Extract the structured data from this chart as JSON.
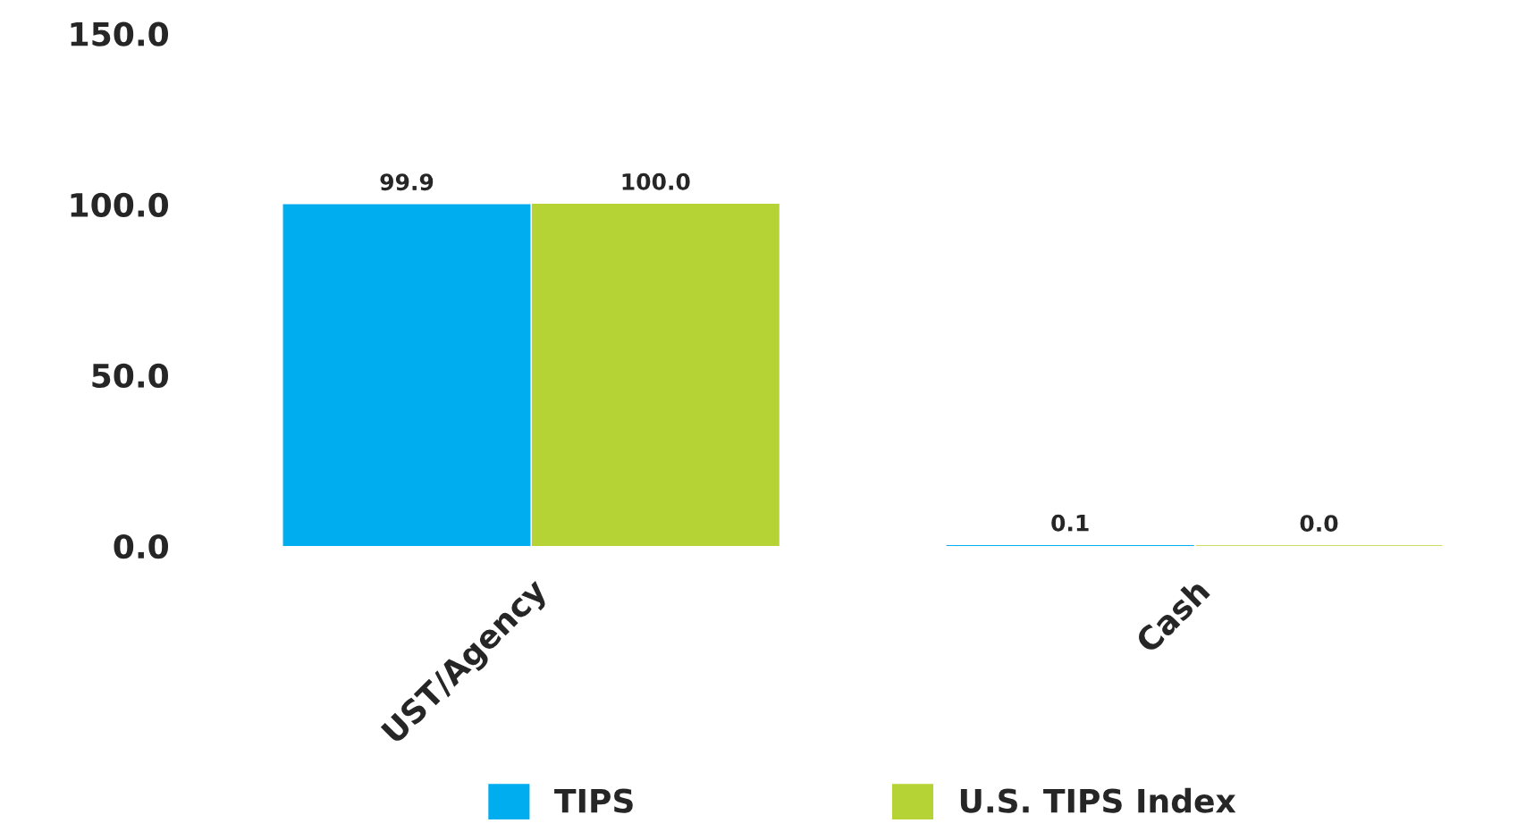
{
  "chart_data": {
    "type": "bar",
    "categories": [
      "UST/Agency",
      "Cash"
    ],
    "series": [
      {
        "name": "TIPS",
        "color": "#00aeef",
        "values": [
          99.9,
          0.1
        ],
        "value_labels": [
          "99.9",
          "0.1"
        ]
      },
      {
        "name": "U.S. TIPS Index",
        "color": "#b5d334",
        "values": [
          100.0,
          0.0
        ],
        "value_labels": [
          "100.0",
          "0.0"
        ]
      }
    ],
    "ylim": [
      0,
      150
    ],
    "yticks": [
      {
        "value": 0,
        "label": "0.0"
      },
      {
        "value": 50,
        "label": "50.0"
      },
      {
        "value": 100,
        "label": "100.0"
      },
      {
        "value": 150,
        "label": "150.0"
      }
    ],
    "grid": false,
    "legend": "bottom"
  }
}
